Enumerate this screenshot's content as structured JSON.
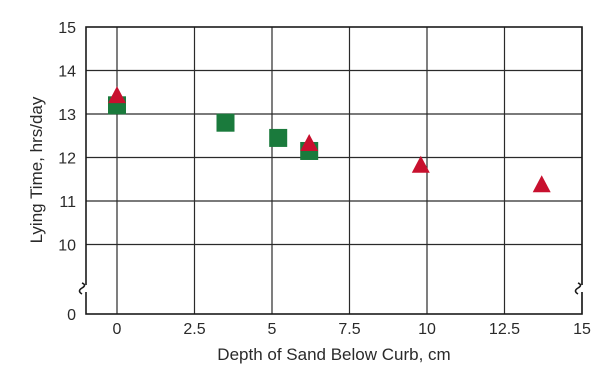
{
  "chart_data": {
    "type": "scatter",
    "title": "",
    "xlabel": "Depth of Sand Below Curb, cm",
    "ylabel": "Lying Time, hrs/day",
    "xlim": [
      -1,
      15
    ],
    "ylim_broken": {
      "lower": 0,
      "upper": [
        9,
        15
      ],
      "break": true
    },
    "grid": true,
    "legend": "none",
    "x_ticks": [
      "0",
      "2.5",
      "5",
      "7.5",
      "10",
      "12.5",
      "15"
    ],
    "x_tick_values": [
      0,
      2.5,
      5,
      7.5,
      10,
      12.5,
      15
    ],
    "y_ticks": [
      "0",
      "10",
      "11",
      "12",
      "13",
      "14",
      "15"
    ],
    "y_tick_values": [
      0,
      10,
      11,
      12,
      13,
      14,
      15
    ],
    "series": [
      {
        "marker": "triangle",
        "color": "#c8102e",
        "x": [
          0,
          6.2,
          9.8,
          13.7
        ],
        "y": [
          13.4,
          12.3,
          11.8,
          11.35
        ]
      },
      {
        "marker": "square",
        "color": "#1a7a3c",
        "x": [
          0,
          3.5,
          5.2,
          6.2
        ],
        "y": [
          13.2,
          12.8,
          12.45,
          12.15
        ]
      }
    ]
  }
}
